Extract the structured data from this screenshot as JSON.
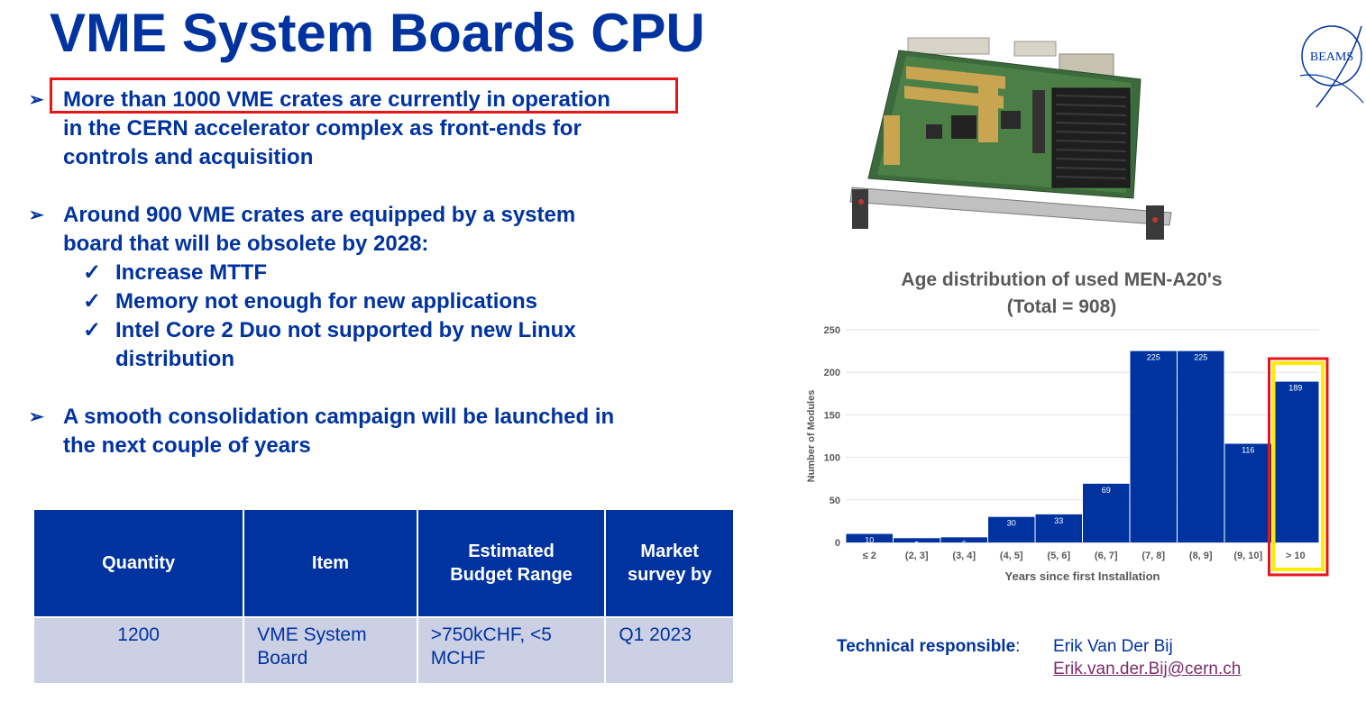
{
  "title": "VME System Boards CPU",
  "bullets": [
    {
      "text": "More than 1000 VME crates are currently in operation in the CERN accelerator complex as front-ends for controls and acquisition"
    },
    {
      "text": "Around 900 VME crates are equipped by a system board that will be obsolete by 2028:"
    },
    {
      "text": "A smooth consolidation campaign will be launched in the next couple of years"
    }
  ],
  "bullet_lines": {
    "b1": [
      "More than 1000 VME crates are currently in operation",
      "in the CERN accelerator complex as front-ends for",
      "controls and acquisition"
    ],
    "b2": [
      "Around 900 VME crates are equipped by a system",
      "board that will be obsolete by 2028:"
    ],
    "b3": [
      "A smooth consolidation campaign will be launched in",
      "the next couple of years"
    ]
  },
  "subbullets": [
    "Increase MTTF",
    "Memory not enough for new applications",
    "Intel Core 2 Duo not supported by new Linux distribution"
  ],
  "subbullet_lines": {
    "s3": [
      "Intel Core 2 Duo not supported by new Linux",
      "distribution"
    ]
  },
  "marks": {
    "arrow": "➢",
    "check": "✓"
  },
  "table": {
    "headers": [
      "Quantity",
      "Item",
      "Estimated Budget Range",
      "Market survey by"
    ],
    "header_lines": {
      "budget": [
        "Estimated",
        "Budget Range"
      ],
      "survey": [
        "Market",
        "survey by"
      ]
    },
    "rows": [
      [
        "1200",
        "VME System Board",
        ">750kCHF, <5 MCHF",
        "Q1 2023"
      ]
    ],
    "cell_lines": {
      "item": [
        "VME System",
        "Board"
      ],
      "budget": [
        ">750kCHF, <5",
        "MCHF"
      ]
    }
  },
  "logo_text": "BEAMS",
  "chart_data": {
    "type": "bar",
    "title": "Age distribution of used MEN-A20's (Total = 908)",
    "title_lines": [
      "Age distribution of used MEN-A20's",
      "(Total = 908)"
    ],
    "xlabel": "Years since first Installation",
    "ylabel": "Number of Modules",
    "categories": [
      "≤ 2",
      "(2, 3]",
      "(3, 4]",
      "(4, 5]",
      "(5, 6]",
      "(6, 7]",
      "(7, 8]",
      "(8, 9]",
      "(9, 10]",
      "> 10"
    ],
    "values": [
      10,
      5,
      6,
      30,
      33,
      69,
      225,
      225,
      116,
      189
    ],
    "yticks": [
      0,
      50,
      100,
      150,
      200,
      250
    ],
    "ylim": [
      0,
      250
    ],
    "bar_color": "#0033a0",
    "highlight_category": "> 10"
  },
  "technical": {
    "label": "Technical responsible",
    "colon": ":",
    "name": "Erik Van Der Bij",
    "email": "Erik.van.der.Bij@cern.ch"
  },
  "colors": {
    "primary": "#0033a0",
    "highlight_red": "#e8141a",
    "highlight_yellow": "#ffeb00",
    "table_row": "#ccd0e4"
  }
}
